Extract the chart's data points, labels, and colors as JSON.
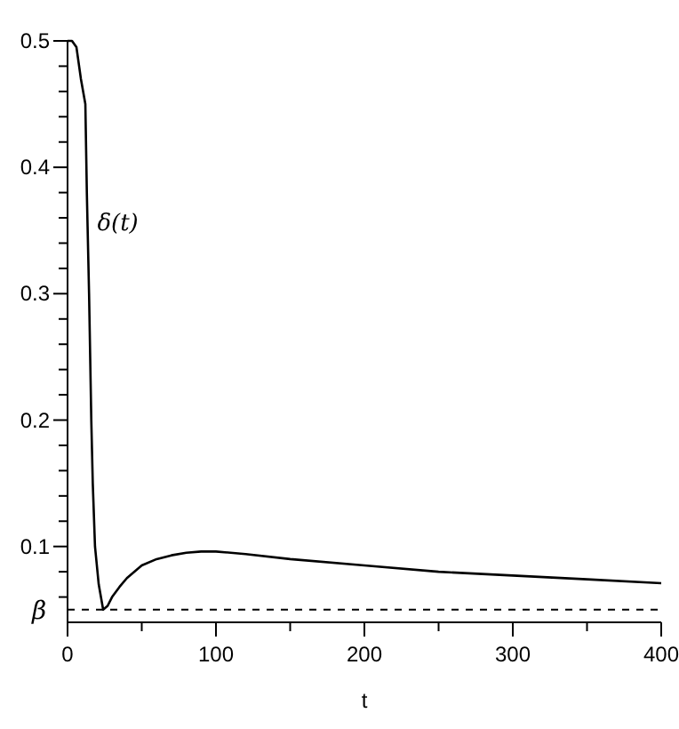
{
  "chart_data": {
    "type": "line",
    "xlabel": "t",
    "x": [
      0,
      3,
      6,
      9,
      12,
      13,
      14.5,
      16,
      17,
      18.5,
      21,
      24,
      27,
      30,
      35,
      40,
      50,
      60,
      70,
      80,
      90,
      100,
      120,
      150,
      200,
      250,
      300,
      350,
      400
    ],
    "series": [
      {
        "color": "#000000",
        "values": [
          0.5,
          0.5,
          0.495,
          0.47,
          0.45,
          0.38,
          0.3,
          0.2,
          0.15,
          0.1,
          0.07,
          0.05,
          0.053,
          0.06,
          0.068,
          0.075,
          0.085,
          0.09,
          0.093,
          0.095,
          0.096,
          0.096,
          0.094,
          0.09,
          0.085,
          0.08,
          0.077,
          0.074,
          0.071
        ]
      }
    ],
    "xlim": [
      0,
      400
    ],
    "ylim": [
      0.04,
      0.5
    ],
    "xticks": [
      0,
      {
        "value": 50,
        "label": null
      },
      100,
      {
        "value": 150,
        "label": null
      },
      200,
      {
        "value": 250,
        "label": null
      },
      300,
      {
        "value": 350,
        "label": null
      },
      400
    ],
    "yticks": [
      {
        "value": 0.06,
        "label": null
      },
      {
        "value": 0.08,
        "label": null
      },
      0.1,
      {
        "value": 0.12,
        "label": null
      },
      {
        "value": 0.14,
        "label": null
      },
      {
        "value": 0.16,
        "label": null
      },
      {
        "value": 0.18,
        "label": null
      },
      0.2,
      {
        "value": 0.22,
        "label": null
      },
      {
        "value": 0.24,
        "label": null
      },
      {
        "value": 0.26,
        "label": null
      },
      {
        "value": 0.28,
        "label": null
      },
      0.3,
      {
        "value": 0.32,
        "label": null
      },
      {
        "value": 0.34,
        "label": null
      },
      {
        "value": 0.36,
        "label": null
      },
      {
        "value": 0.38,
        "label": null
      },
      0.4,
      {
        "value": 0.42,
        "label": null
      },
      {
        "value": 0.44,
        "label": null
      },
      {
        "value": 0.46,
        "label": null
      },
      {
        "value": 0.48,
        "label": null
      },
      0.5
    ],
    "ref_lines": [
      {
        "axis": "y",
        "value": 0.05,
        "label": "β",
        "line_style": "dashed"
      }
    ],
    "annotations": [
      {
        "text": "δ(t)",
        "x": 20,
        "y": 0.35
      }
    ],
    "marker": "none",
    "line_style": "solid",
    "grid": false
  }
}
